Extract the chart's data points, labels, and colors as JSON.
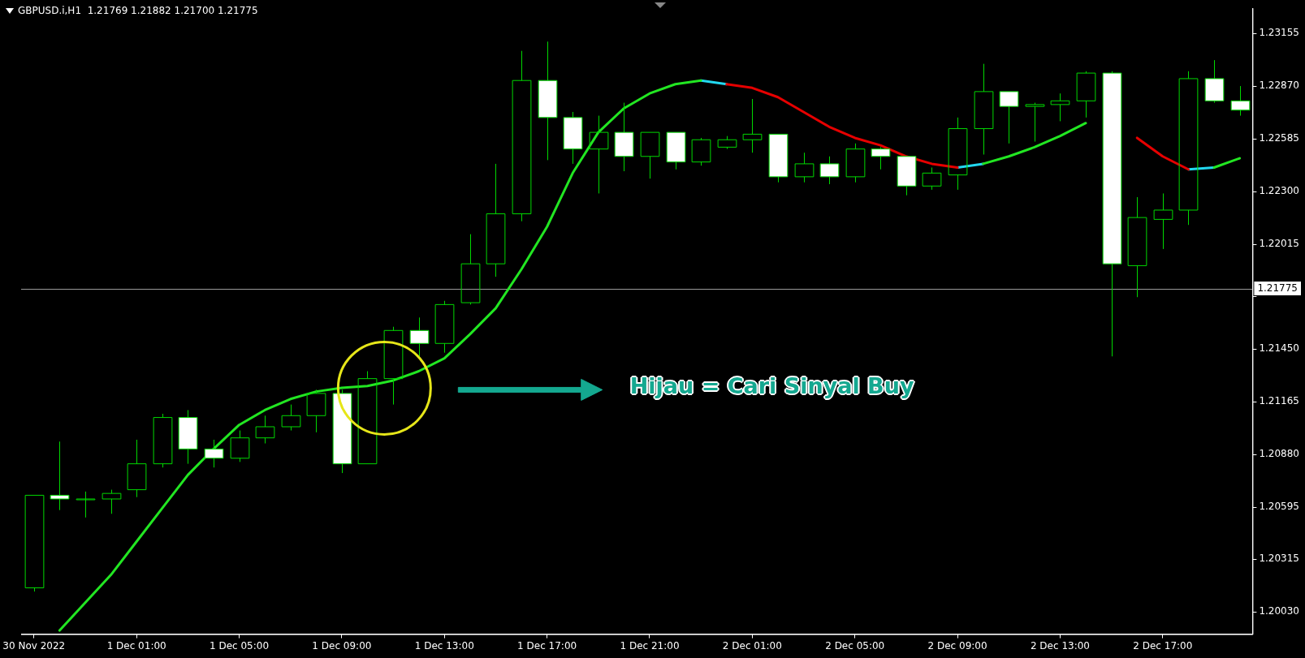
{
  "chart_data": {
    "type": "candlestick",
    "title": "GBPUSD.i,H1  1.21769 1.21882 1.21700 1.21775",
    "categories": [
      "30 Nov 2022",
      null,
      null,
      null,
      "1 Dec 01:00",
      null,
      null,
      null,
      "1 Dec 05:00",
      null,
      null,
      null,
      "1 Dec 09:00",
      null,
      null,
      null,
      "1 Dec 13:00",
      null,
      null,
      null,
      "1 Dec 17:00",
      null,
      null,
      null,
      "1 Dec 21:00",
      null,
      null,
      null,
      "2 Dec 01:00",
      null,
      null,
      null,
      "2 Dec 05:00",
      null,
      null,
      null,
      "2 Dec 09:00",
      null,
      null,
      null,
      "2 Dec 13:00",
      null,
      null,
      null,
      "2 Dec 17:00",
      null,
      null,
      null
    ],
    "colors": [
      "#00d800",
      "#ffffff",
      "#00d800",
      "#00d800",
      "#00d800",
      "#00d800",
      "#ffffff",
      "#ffffff",
      "#00d800",
      "#00d800",
      "#00d800",
      "#00d800",
      "#ffffff",
      "#00d800",
      "#00d800",
      "#ffffff",
      "#00d800",
      "#00d800",
      "#00d800",
      "#00d800",
      "#ffffff",
      "#ffffff",
      "#00d800",
      "#ffffff",
      "#00d800",
      "#ffffff",
      "#00d800",
      "#00d800",
      "#00d800",
      "#ffffff",
      "#00d800",
      "#ffffff",
      "#00d800",
      "#ffffff",
      "#ffffff",
      "#00d800",
      "#00d800",
      "#00d800",
      "#ffffff",
      "#00d800",
      "#00d800",
      "#00d800",
      "#ffffff",
      "#00d800",
      "#00d800",
      "#00d800",
      "#ffffff",
      "#ffffff"
    ],
    "ohlc": [
      [
        1.2016,
        1.2066,
        1.2014,
        1.2066
      ],
      [
        1.2066,
        1.2095,
        1.2058,
        1.2064
      ],
      [
        1.2064,
        1.2068,
        1.2054,
        1.2064
      ],
      [
        1.2064,
        1.2069,
        1.2056,
        1.2067
      ],
      [
        1.2069,
        1.2096,
        1.2065,
        1.2083
      ],
      [
        1.2083,
        1.211,
        1.2081,
        1.2108
      ],
      [
        1.2108,
        1.2112,
        1.2083,
        1.2091
      ],
      [
        1.2091,
        1.2096,
        1.2081,
        1.2086
      ],
      [
        1.2086,
        1.2101,
        1.2084,
        1.2097
      ],
      [
        1.2097,
        1.2109,
        1.2094,
        1.2103
      ],
      [
        1.2103,
        1.2115,
        1.2101,
        1.2109
      ],
      [
        1.2109,
        1.2123,
        1.21,
        1.2121
      ],
      [
        1.2121,
        1.2123,
        1.2078,
        1.2083
      ],
      [
        1.2083,
        1.2133,
        1.2083,
        1.2129
      ],
      [
        1.2129,
        1.2157,
        1.2115,
        1.2155
      ],
      [
        1.2155,
        1.2162,
        1.2141,
        1.2148
      ],
      [
        1.2148,
        1.2171,
        1.2143,
        1.2169
      ],
      [
        1.217,
        1.2207,
        1.2169,
        1.2191
      ],
      [
        1.2191,
        1.2245,
        1.2184,
        1.2218
      ],
      [
        1.2218,
        1.2306,
        1.2214,
        1.229
      ],
      [
        1.229,
        1.2311,
        1.2247,
        1.227
      ],
      [
        1.227,
        1.2273,
        1.2245,
        1.2253
      ],
      [
        1.2253,
        1.2271,
        1.2229,
        1.2262
      ],
      [
        1.2262,
        1.2278,
        1.2241,
        1.2249
      ],
      [
        1.2249,
        1.2262,
        1.2237,
        1.2262
      ],
      [
        1.2262,
        1.2262,
        1.2242,
        1.2246
      ],
      [
        1.2246,
        1.2259,
        1.2244,
        1.2258
      ],
      [
        1.2254,
        1.226,
        1.2253,
        1.2258
      ],
      [
        1.2258,
        1.228,
        1.2251,
        1.2261
      ],
      [
        1.2261,
        1.2261,
        1.2235,
        1.2238
      ],
      [
        1.2238,
        1.2251,
        1.2235,
        1.2245
      ],
      [
        1.2245,
        1.2249,
        1.2234,
        1.2238
      ],
      [
        1.2238,
        1.2256,
        1.2235,
        1.2253
      ],
      [
        1.2253,
        1.2254,
        1.2242,
        1.2249
      ],
      [
        1.2249,
        1.2249,
        1.2228,
        1.2233
      ],
      [
        1.2233,
        1.2243,
        1.2231,
        1.224
      ],
      [
        1.2239,
        1.227,
        1.2231,
        1.2264
      ],
      [
        1.2264,
        1.2299,
        1.225,
        1.2284
      ],
      [
        1.2284,
        1.2284,
        1.2256,
        1.2276
      ],
      [
        1.2276,
        1.2278,
        1.2257,
        1.2277
      ],
      [
        1.2277,
        1.2283,
        1.2268,
        1.2279
      ],
      [
        1.2279,
        1.2295,
        1.227,
        1.2294
      ],
      [
        1.2294,
        1.2295,
        1.2141,
        1.2191
      ],
      [
        1.219,
        1.2227,
        1.2173,
        1.2216
      ],
      [
        1.2215,
        1.2229,
        1.2199,
        1.222
      ],
      [
        1.222,
        1.2295,
        1.2212,
        1.2291
      ],
      [
        1.2291,
        1.2301,
        1.2278,
        1.2279
      ],
      [
        1.2279,
        1.2287,
        1.2271,
        1.2274
      ]
    ],
    "series": [
      {
        "type": "line",
        "color": "#22e622",
        "values": [
          null,
          1.1993,
          1.2008,
          1.2023,
          1.2041,
          1.2059,
          1.2077,
          1.2091,
          1.2104,
          1.2112,
          1.2118,
          1.2122,
          1.2124,
          1.2125,
          1.2128,
          1.2133,
          1.214,
          1.2153,
          1.2167,
          1.2188,
          1.2211,
          1.224,
          1.2262,
          1.2275,
          1.2283,
          1.2288,
          1.229,
          null,
          null,
          null,
          null,
          null,
          null,
          null,
          null,
          null,
          null,
          1.2245,
          1.2249,
          1.2254,
          1.226,
          1.2267,
          null,
          null,
          null,
          null,
          1.2243,
          1.2248
        ]
      },
      {
        "type": "line",
        "color": "#e60000",
        "values": [
          null,
          null,
          null,
          null,
          null,
          null,
          null,
          null,
          null,
          null,
          null,
          null,
          null,
          null,
          null,
          null,
          null,
          null,
          null,
          null,
          null,
          null,
          null,
          null,
          null,
          null,
          null,
          1.2288,
          1.2286,
          1.2281,
          1.2273,
          1.2265,
          1.2259,
          1.2255,
          1.2249,
          1.2245,
          1.2243,
          null,
          null,
          null,
          null,
          null,
          null,
          1.2259,
          1.2249,
          1.2242,
          null,
          null
        ]
      },
      {
        "type": "line",
        "color": "#22d8f0",
        "values": [
          null,
          null,
          null,
          null,
          null,
          null,
          null,
          null,
          null,
          null,
          null,
          null,
          null,
          null,
          null,
          null,
          null,
          null,
          null,
          null,
          null,
          null,
          null,
          null,
          null,
          null,
          1.229,
          1.2288,
          null,
          null,
          null,
          null,
          null,
          null,
          null,
          null,
          1.2243,
          1.2245,
          null,
          null,
          null,
          null,
          null,
          null,
          null,
          1.2242,
          1.2243,
          null
        ]
      }
    ],
    "ylim": [
      1.1991,
      1.2329
    ],
    "yticks": [
      1.23155,
      {
        "value": 1.2287,
        "label": "1.22870"
      },
      1.22585,
      {
        "value": 1.223,
        "label": "1.22300"
      },
      1.22015,
      {
        "value": 1.21735,
        "label": null
      },
      {
        "value": 1.2145,
        "label": "1.21450"
      },
      1.21165,
      {
        "value": 1.2088,
        "label": "1.20880"
      },
      1.20595,
      1.20315,
      {
        "value": 1.2003,
        "label": "1.20030"
      }
    ],
    "ref_lines": [
      {
        "axis": "y",
        "value": 1.21775,
        "label": "1.21775",
        "color": "#9a9a9a"
      }
    ],
    "annotations": [
      "Hijau = Cari Sinyal Buy"
    ],
    "grid": false,
    "legend": false
  }
}
